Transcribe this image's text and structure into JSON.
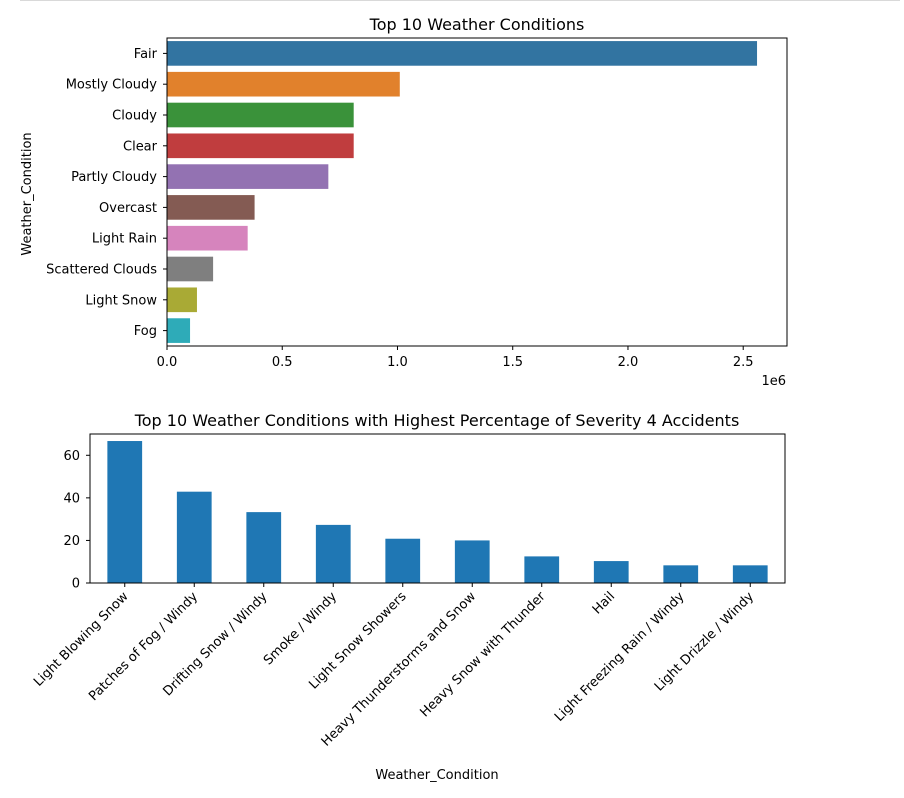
{
  "chart_data": [
    {
      "type": "bar",
      "orientation": "horizontal",
      "title": "Top 10 Weather Conditions",
      "xlabel": "",
      "ylabel": "Weather_Condition",
      "x_offset_label": "1e6",
      "categories": [
        "Fair",
        "Mostly Cloudy",
        "Cloudy",
        "Clear",
        "Partly Cloudy",
        "Overcast",
        "Light Rain",
        "Scattered Clouds",
        "Light Snow",
        "Fog"
      ],
      "values": [
        2.56,
        1.01,
        0.81,
        0.81,
        0.7,
        0.38,
        0.35,
        0.2,
        0.13,
        0.1
      ],
      "colors": [
        "#3274a1",
        "#e1812c",
        "#3a923a",
        "#c03d3e",
        "#9372b2",
        "#845b53",
        "#d684bd",
        "#7f7f7f",
        "#a9aa35",
        "#2eabb8"
      ],
      "xlim": [
        0,
        2.69
      ],
      "xticks": [
        "0.0",
        "0.5",
        "1.0",
        "1.5",
        "2.0",
        "2.5"
      ],
      "grid": false
    },
    {
      "type": "bar",
      "orientation": "vertical",
      "title": "Top 10 Weather Conditions with Highest Percentage of Severity 4 Accidents",
      "xlabel": "Weather_Condition",
      "ylabel": "",
      "categories": [
        "Light Blowing Snow",
        "Patches of Fog / Windy",
        "Drifting Snow / Windy",
        "Smoke / Windy",
        "Light Snow Showers",
        "Heavy Thunderstorms and Snow",
        "Heavy Snow with Thunder",
        "Hail",
        "Light Freezing Rain / Windy",
        "Light Drizzle / Windy"
      ],
      "values": [
        66.7,
        42.9,
        33.3,
        27.3,
        20.8,
        20.0,
        12.5,
        10.3,
        8.3,
        8.3
      ],
      "color": "#1f77b4",
      "ylim": [
        0,
        70
      ],
      "yticks": [
        "0",
        "20",
        "40",
        "60"
      ],
      "grid": false
    }
  ]
}
